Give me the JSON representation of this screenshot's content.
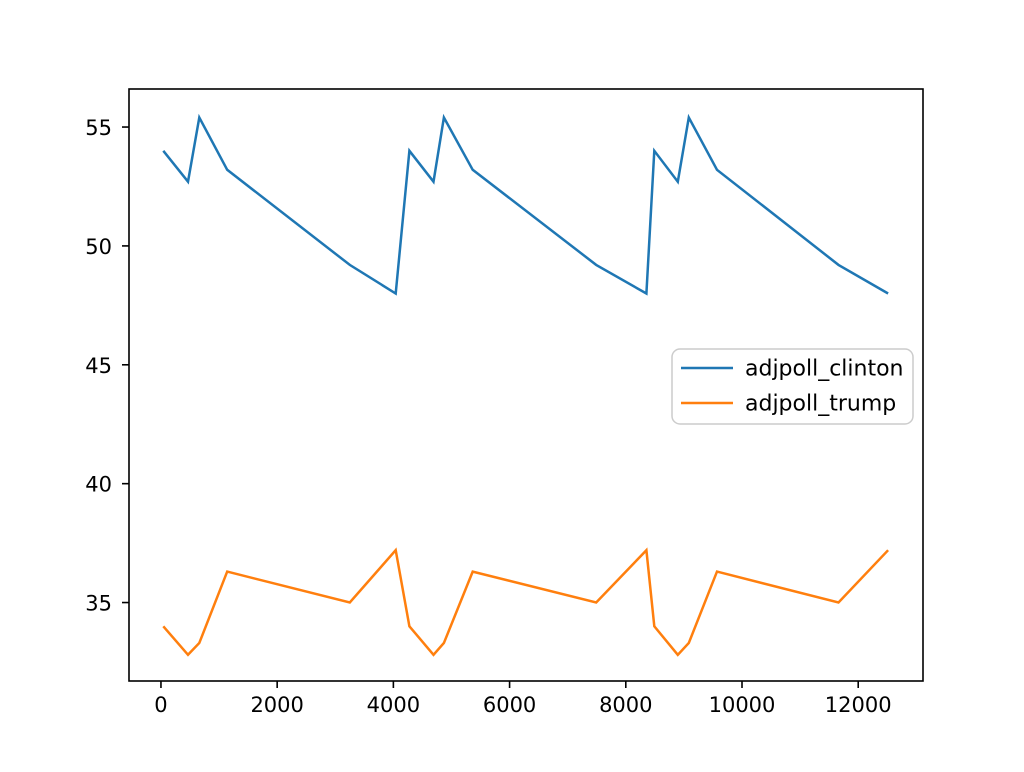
{
  "chart_data": {
    "type": "line",
    "title": "",
    "xlabel": "",
    "ylabel": "",
    "grid": false,
    "x_ticks": [
      0,
      2000,
      4000,
      6000,
      8000,
      10000,
      12000
    ],
    "y_ticks": [
      35,
      40,
      45,
      50,
      55
    ],
    "xlim": [
      -550,
      13115
    ],
    "ylim": [
      31.7,
      56.6
    ],
    "x": [
      40,
      465,
      660,
      1140,
      3250,
      4040,
      4275,
      4690,
      4870,
      5365,
      7490,
      8355,
      8490,
      8895,
      9085,
      9570,
      11660,
      12515
    ],
    "series": [
      {
        "name": "adjpoll_clinton",
        "color": "#1f77b4",
        "values": [
          54.0,
          52.7,
          55.4,
          53.2,
          49.2,
          48.0,
          54.0,
          52.7,
          55.4,
          53.2,
          49.2,
          48.0,
          54.0,
          52.7,
          55.4,
          53.2,
          49.2,
          48.0
        ]
      },
      {
        "name": "adjpoll_trump",
        "color": "#ff7f0e",
        "values": [
          34.0,
          32.8,
          33.3,
          36.3,
          35.0,
          37.2,
          34.0,
          32.8,
          33.3,
          36.3,
          35.0,
          37.2,
          34.0,
          32.8,
          33.3,
          36.3,
          35.0,
          37.2
        ]
      }
    ],
    "legend": {
      "position": "center-right",
      "entries": [
        "adjpoll_clinton",
        "adjpoll_trump"
      ],
      "border_color": "#cccccc",
      "background": "#ffffff"
    },
    "axis_color": "#000000"
  }
}
